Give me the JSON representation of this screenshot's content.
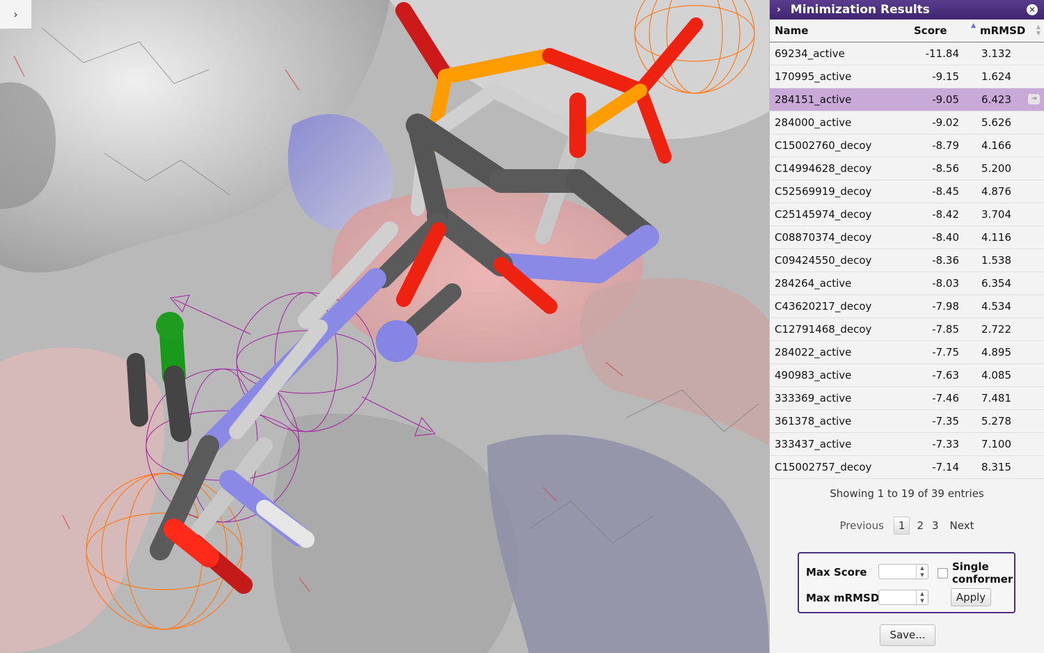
{
  "viewer": {
    "toggle_icon": "chevron-right-icon",
    "toggle_glyph": "›"
  },
  "panel": {
    "title": "Minimization Results",
    "close_glyph": "✕",
    "chevron_glyph": "›",
    "accent_color": "#4c2f80",
    "selected_row_color": "#c8a9d8"
  },
  "table": {
    "columns": {
      "name": "Name",
      "score": "Score",
      "rmsd": "mRMSD"
    },
    "sort_column": "Score",
    "rows": [
      {
        "name": "69234_active",
        "score": "-11.84",
        "rmsd": "3.132"
      },
      {
        "name": "170995_active",
        "score": "-9.15",
        "rmsd": "1.624"
      },
      {
        "name": "284151_active",
        "score": "-9.05",
        "rmsd": "6.423"
      },
      {
        "name": "284000_active",
        "score": "-9.02",
        "rmsd": "5.626"
      },
      {
        "name": "C15002760_decoy",
        "score": "-8.79",
        "rmsd": "4.166"
      },
      {
        "name": "C14994628_decoy",
        "score": "-8.56",
        "rmsd": "5.200"
      },
      {
        "name": "C52569919_decoy",
        "score": "-8.45",
        "rmsd": "4.876"
      },
      {
        "name": "C25145974_decoy",
        "score": "-8.42",
        "rmsd": "3.704"
      },
      {
        "name": "C08870374_decoy",
        "score": "-8.40",
        "rmsd": "4.116"
      },
      {
        "name": "C09424550_decoy",
        "score": "-8.36",
        "rmsd": "1.538"
      },
      {
        "name": "284264_active",
        "score": "-8.03",
        "rmsd": "6.354"
      },
      {
        "name": "C43620217_decoy",
        "score": "-7.98",
        "rmsd": "4.534"
      },
      {
        "name": "C12791468_decoy",
        "score": "-7.85",
        "rmsd": "2.722"
      },
      {
        "name": "284022_active",
        "score": "-7.75",
        "rmsd": "4.895"
      },
      {
        "name": "490983_active",
        "score": "-7.63",
        "rmsd": "4.085"
      },
      {
        "name": "333369_active",
        "score": "-7.46",
        "rmsd": "7.481"
      },
      {
        "name": "361378_active",
        "score": "-7.35",
        "rmsd": "5.278"
      },
      {
        "name": "333437_active",
        "score": "-7.33",
        "rmsd": "7.100"
      },
      {
        "name": "C15002757_decoy",
        "score": "-7.14",
        "rmsd": "8.315"
      }
    ],
    "selected_index": 2
  },
  "info": "Showing 1 to 19 of 39 entries",
  "pager": {
    "previous": "Previous",
    "pages": [
      "1",
      "2",
      "3"
    ],
    "current": "1",
    "next": "Next"
  },
  "filters": {
    "max_score_label": "Max Score",
    "max_rmsd_label": "Max mRMSD",
    "max_score_value": "",
    "max_rmsd_value": "",
    "single_conformer_label_1": "Single",
    "single_conformer_label_2": "conformer",
    "single_conformer_checked": false,
    "apply_label": "Apply"
  },
  "save_label": "Save..."
}
